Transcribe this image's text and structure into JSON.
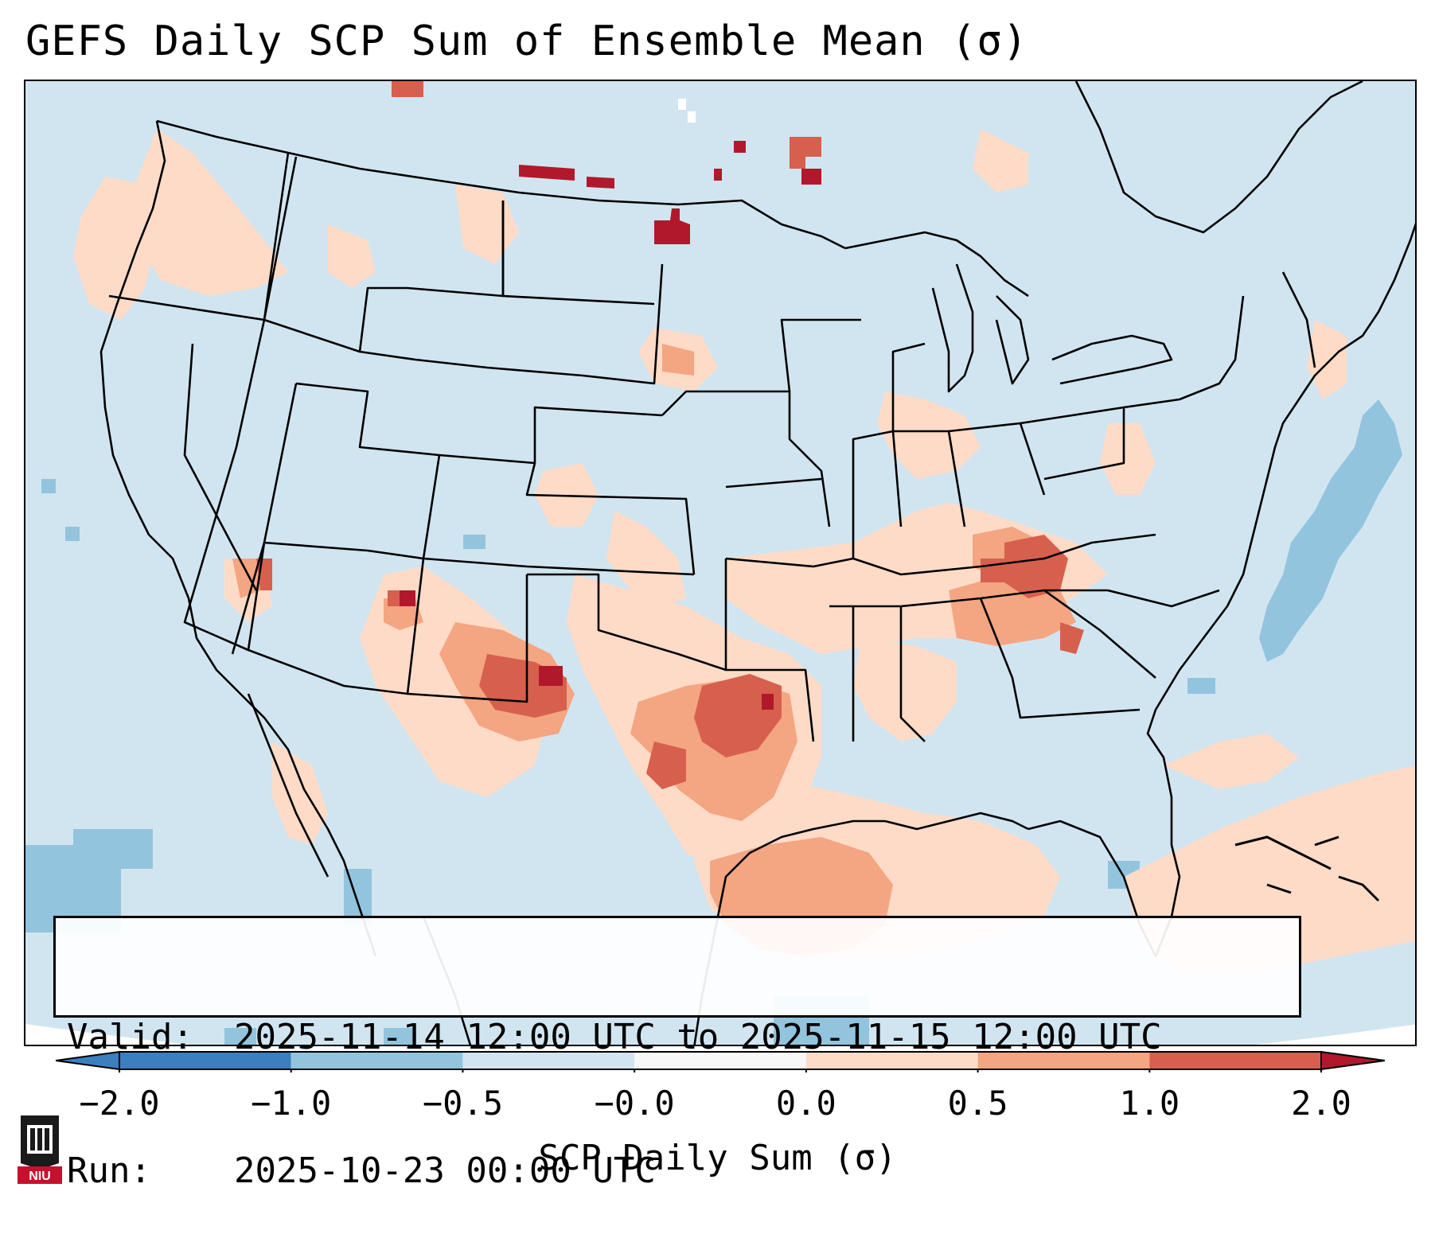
{
  "title": "GEFS Daily SCP Sum of Ensemble Mean (σ)",
  "info": {
    "valid_label": "Valid:",
    "valid_value": "2025-11-14 12:00 UTC to 2025-11-15 12:00 UTC",
    "run_label": "Run:",
    "run_value": "2025-10-23 00:00 UTC"
  },
  "colorbar": {
    "label": "SCP Daily Sum (σ)",
    "ticks": [
      "−2.0",
      "−1.0",
      "−0.5",
      "−0.0",
      "0.0",
      "0.5",
      "1.0",
      "2.0"
    ],
    "colors": [
      "#3b7fbf",
      "#92c4de",
      "#d1e5f0",
      "#f7f7f7",
      "#fddbc7",
      "#f4a582",
      "#d6604d",
      "#b2182b"
    ]
  },
  "logo": {
    "text": "NIU"
  },
  "colors": {
    "background": "#d1e5f0",
    "ocean_outside": "#ffffff",
    "lines": "#000000"
  }
}
